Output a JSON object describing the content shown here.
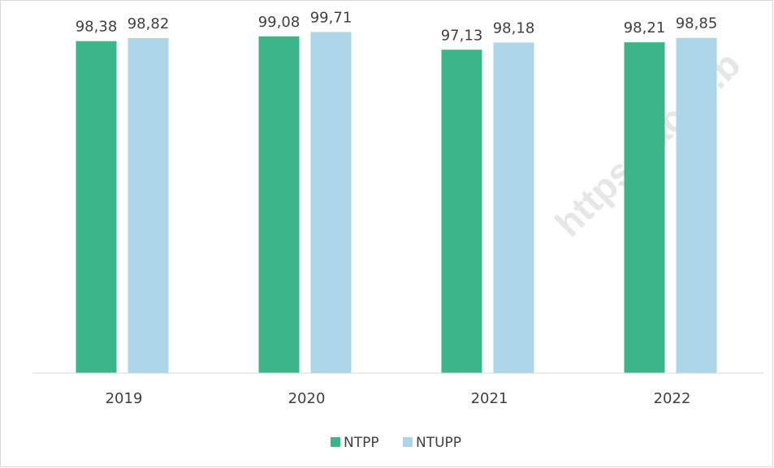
{
  "chart_data": {
    "type": "bar",
    "categories": [
      "2019",
      "2020",
      "2021",
      "2022"
    ],
    "series": [
      {
        "name": "NTPP",
        "color": "#3cb589",
        "values": [
          98.38,
          99.08,
          97.13,
          98.21
        ],
        "value_labels": [
          "98,38",
          "99,08",
          "97,13",
          "98,21"
        ]
      },
      {
        "name": "NTUPP",
        "color": "#acd6e8",
        "values": [
          98.82,
          99.71,
          98.18,
          98.85
        ],
        "value_labels": [
          "98,82",
          "99,71",
          "98,18",
          "98,85"
        ]
      }
    ],
    "ylim": [
      50,
      100
    ],
    "legend": "bottom",
    "watermark": "https://aceh.b"
  }
}
